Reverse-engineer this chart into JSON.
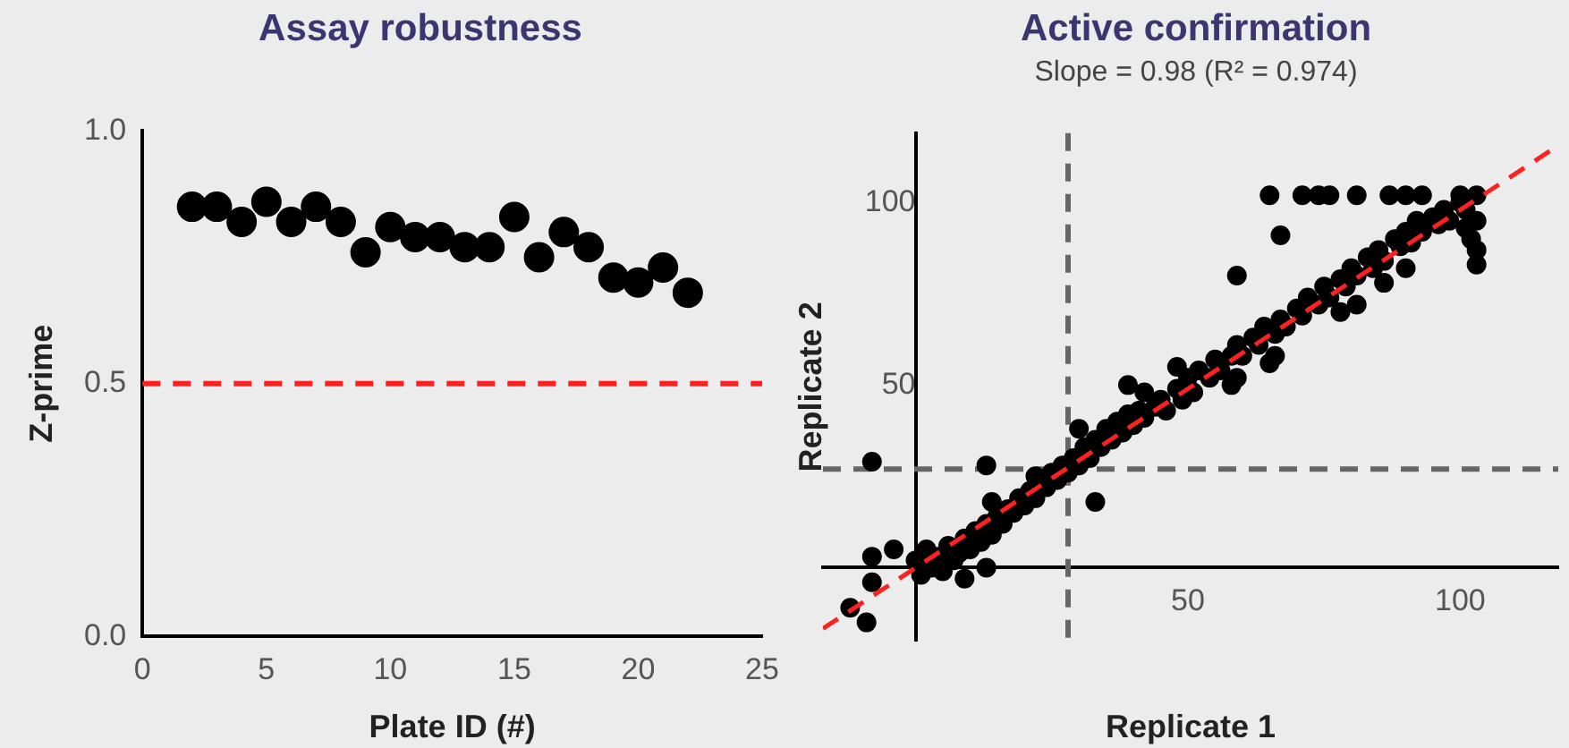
{
  "chart_data": [
    {
      "type": "scatter",
      "title": "Assay robustness",
      "xlabel": "Plate ID (#)",
      "ylabel": "Z-prime",
      "x": [
        2,
        3,
        4,
        5,
        6,
        7,
        8,
        9,
        10,
        11,
        12,
        13,
        14,
        15,
        16,
        17,
        18,
        19,
        20,
        21,
        22
      ],
      "values": [
        0.85,
        0.85,
        0.82,
        0.86,
        0.82,
        0.85,
        0.82,
        0.76,
        0.81,
        0.79,
        0.79,
        0.77,
        0.77,
        0.83,
        0.75,
        0.8,
        0.77,
        0.71,
        0.7,
        0.73,
        0.68
      ],
      "color": "#000000",
      "marker": "circle",
      "xlim": [
        0,
        25
      ],
      "xticks": [
        0,
        5,
        10,
        15,
        20,
        25
      ],
      "ylim": [
        0,
        1
      ],
      "yticks": [
        {
          "value": 0,
          "label": "0.0"
        },
        {
          "value": 0.5,
          "label": "0.5"
        },
        {
          "value": 1,
          "label": "1.0"
        }
      ],
      "ref_lines": [
        {
          "axis": "y",
          "value": 0.5,
          "color": "#ff2020",
          "line_style": "dashed"
        }
      ],
      "grid": false,
      "legend": false
    },
    {
      "type": "scatter",
      "title": "Active confirmation",
      "subtitle": "Slope = 0.98 (R² = 0.974)",
      "xlabel": "Replicate 1",
      "ylabel": "Replicate 2",
      "series": [
        {
          "type": "scatter",
          "color": "#000000",
          "marker": "circle",
          "x": [
            0,
            1,
            2,
            3,
            4,
            5,
            6,
            7,
            8,
            9,
            10,
            11,
            12,
            13,
            14,
            15,
            16,
            17,
            18,
            19,
            20,
            21,
            22,
            24,
            25,
            26,
            27,
            28,
            29,
            30,
            31,
            32,
            33,
            34,
            35,
            36,
            37,
            38,
            39,
            40,
            41,
            42,
            44,
            45,
            46,
            48,
            49,
            50,
            51,
            52,
            54,
            55,
            56,
            58,
            59,
            60,
            62,
            63,
            64,
            66,
            67,
            68,
            70,
            71,
            72,
            74,
            75,
            76,
            78,
            79,
            80,
            81,
            83,
            84,
            85,
            86,
            88,
            89,
            90,
            91,
            92,
            93,
            95,
            96,
            97,
            98,
            100,
            101,
            101,
            102,
            103,
            103,
            100,
            103,
            14,
            22,
            30,
            42,
            48,
            58,
            66,
            78,
            86,
            65,
            71,
            74,
            76,
            81,
            87,
            90,
            93,
            67,
            59,
            90,
            103,
            81,
            65,
            59,
            39,
            -12,
            -9,
            -8,
            13,
            33,
            -8,
            -8,
            -4,
            9,
            13
          ],
          "values": [
            2,
            -2,
            5,
            0,
            3,
            -1,
            6,
            2,
            4,
            8,
            5,
            10,
            7,
            12,
            9,
            14,
            12,
            16,
            15,
            19,
            17,
            21,
            19,
            22,
            26,
            24,
            28,
            26,
            30,
            28,
            33,
            30,
            35,
            33,
            38,
            35,
            40,
            37,
            42,
            39,
            43,
            41,
            44,
            46,
            43,
            49,
            46,
            52,
            48,
            54,
            52,
            57,
            54,
            58,
            61,
            58,
            63,
            61,
            66,
            64,
            68,
            66,
            71,
            69,
            74,
            72,
            77,
            74,
            79,
            77,
            82,
            80,
            85,
            82,
            87,
            84,
            90,
            88,
            92,
            89,
            95,
            92,
            96,
            94,
            98,
            95,
            100,
            93,
            98,
            90,
            87,
            95,
            102,
            102,
            18,
            25,
            38,
            48,
            55,
            50,
            58,
            70,
            78,
            102,
            102,
            102,
            102,
            102,
            102,
            102,
            102,
            91,
            80,
            82,
            83,
            72,
            56,
            52,
            50,
            -11,
            -15,
            29,
            28,
            18,
            3,
            -4,
            5,
            -3,
            0
          ]
        },
        {
          "type": "line",
          "color": "#ff2020",
          "line_style": "dashed",
          "marker": "none",
          "x": [
            -17,
            118
          ],
          "values": [
            -16.7,
            115.6
          ]
        }
      ],
      "xlim": [
        -17,
        118
      ],
      "xticks": [
        50,
        100
      ],
      "ylim": [
        -20,
        119
      ],
      "yticks": [
        50,
        100
      ],
      "ref_lines": [
        {
          "axis": "x",
          "value": 28,
          "color": "#666666",
          "line_style": "dashed"
        },
        {
          "axis": "y",
          "value": 27,
          "color": "#666666",
          "line_style": "dashed"
        }
      ],
      "grid": false,
      "legend": false
    }
  ]
}
